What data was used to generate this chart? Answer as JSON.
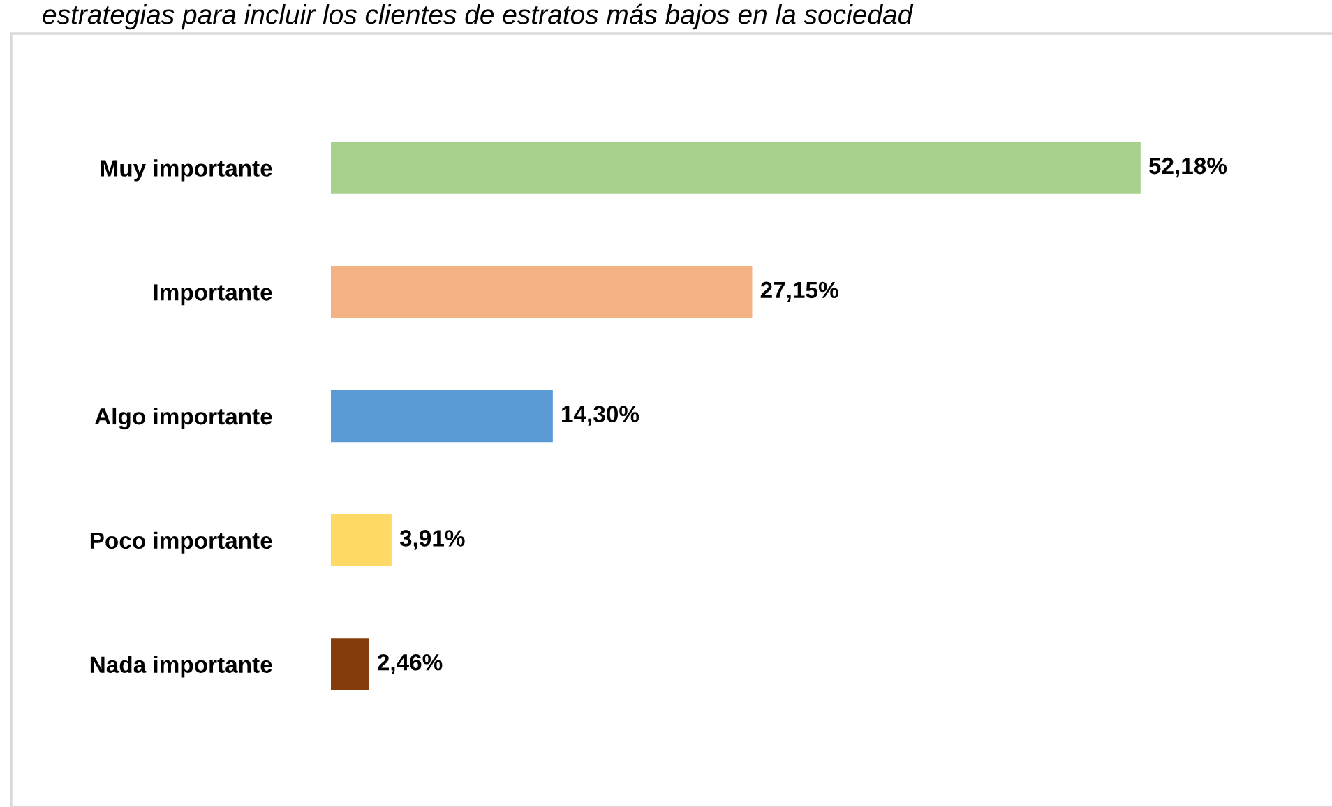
{
  "chart_data": {
    "type": "bar",
    "orientation": "horizontal",
    "title": "estrategias para incluir los clientes de estratos más bajos en la sociedad",
    "categories": [
      "Muy importante",
      "Importante",
      "Algo importante",
      "Poco importante",
      "Nada importante"
    ],
    "values": [
      52.18,
      27.15,
      14.3,
      3.91,
      2.46
    ],
    "value_labels": [
      "52,18%",
      "27,15%",
      "14,30%",
      "3,91%",
      "2,46%"
    ],
    "colors": [
      "#a9d18e",
      "#f4b183",
      "#5b9bd5",
      "#ffd966",
      "#843c0c"
    ],
    "grid": false,
    "legend": false
  }
}
